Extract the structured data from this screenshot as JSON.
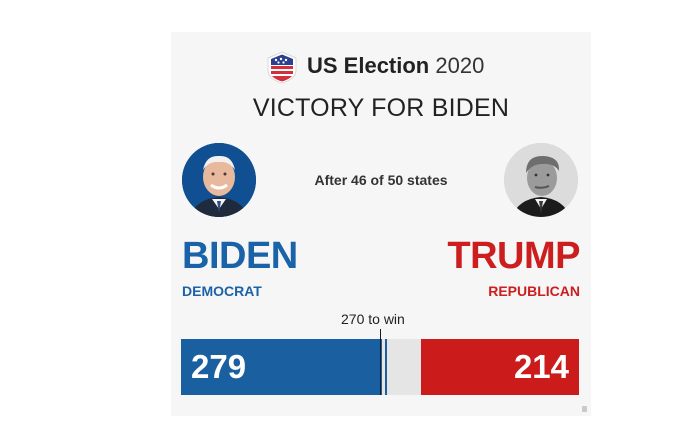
{
  "header": {
    "brand": "US Election",
    "year": "2020",
    "logo_icon": "us-flag-shield-icon"
  },
  "headline": "VICTORY FOR BIDEN",
  "subtitle": "After 46 of 50 states",
  "candidates": {
    "left": {
      "name": "BIDEN",
      "party": "DEMOCRAT",
      "electoral_votes": "279",
      "color": "#1a63a8"
    },
    "right": {
      "name": "TRUMP",
      "party": "REPUBLICAN",
      "electoral_votes": "214",
      "color": "#cc1e1e"
    }
  },
  "threshold": {
    "label": "270 to win",
    "value": 270
  },
  "total_electoral_votes": 538,
  "colors": {
    "democrat_bar": "#1a5fa0",
    "republican_bar": "#cb1b1b",
    "undecided": "#e5e5e5"
  }
}
